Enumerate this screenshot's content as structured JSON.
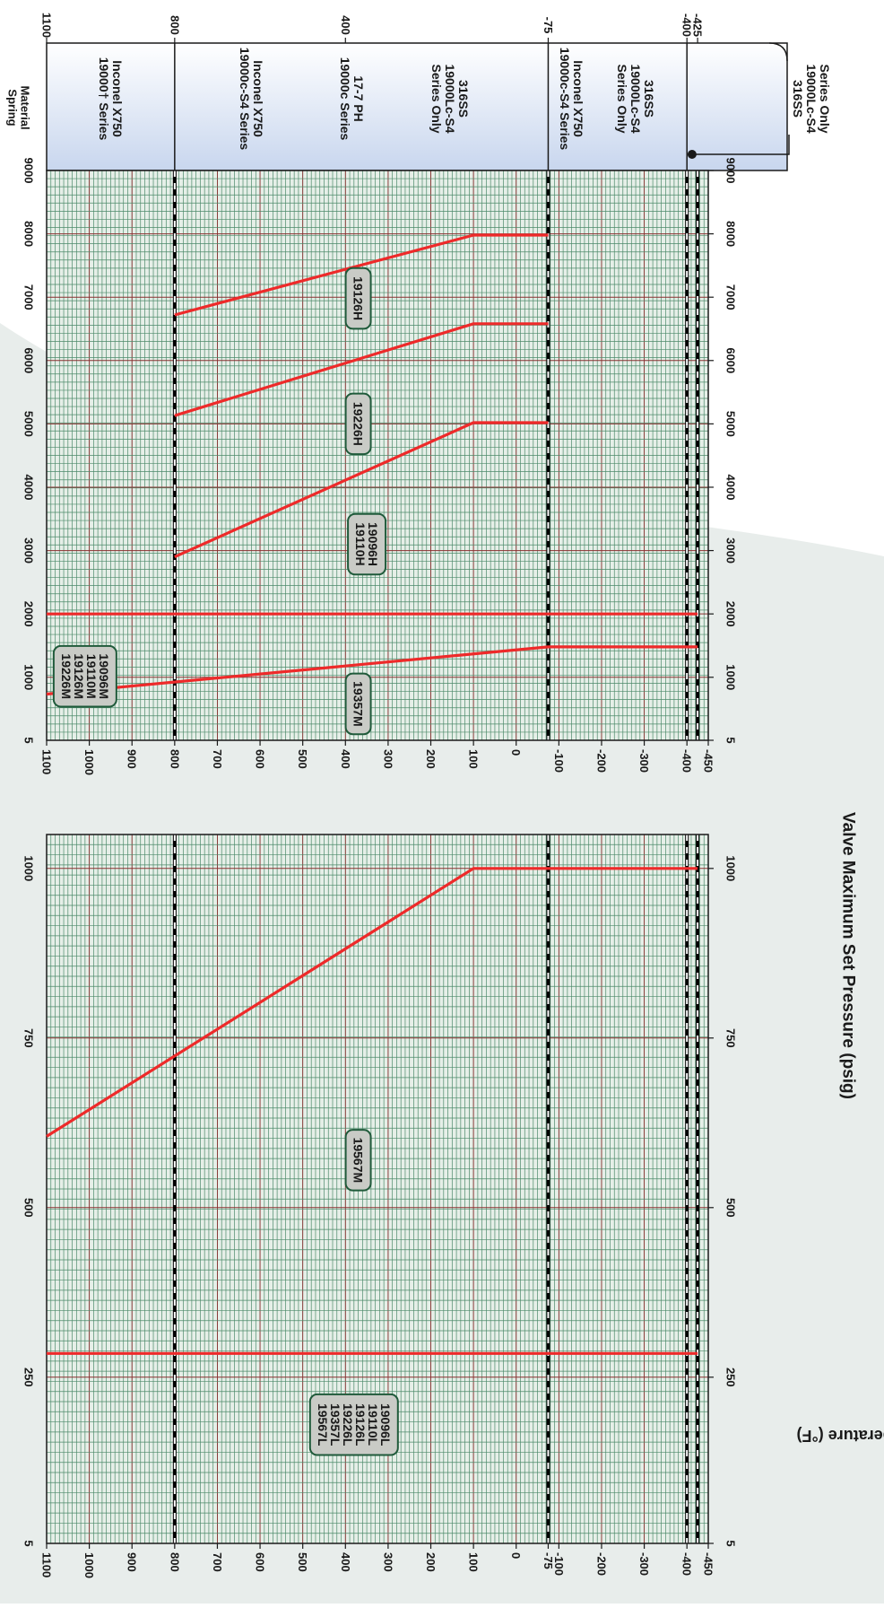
{
  "colors": {
    "grid_minor": "#4c8a6a",
    "grid_major": "#8a3030",
    "curve": "#ee2a2a",
    "panel_fill": "#e6efe8",
    "label_box_fill": "#c9cbc6",
    "label_box_stroke": "#1f5a3a",
    "header_fill_top": "#ffffff",
    "header_fill_bottom": "#c8d6ee",
    "background_swoosh": "#e8edeb"
  },
  "chart_data": {
    "type": "line",
    "orientation": "rotated-90-clockwise",
    "y_label": "Temperature (°F)",
    "x_label": "Valve Maximum Set Pressure (psig)",
    "temperature_limits": [
      800,
      -75,
      -400,
      -425
    ],
    "spring_material": {
      "title": "Spring Material",
      "top_ticks": [
        "1100",
        "800",
        "400",
        "-75",
        "-400",
        "-425"
      ],
      "bands": [
        {
          "tmax": 1100,
          "tmin": 800,
          "lines": [
            "Inconel X750",
            "19000† Series"
          ]
        },
        {
          "tmax": 800,
          "tmin": -75,
          "lines": [
            "Inconel X750",
            "19000c-S4 Series"
          ]
        },
        {
          "tmax": 800,
          "tmin": -75,
          "lines": [
            "17-7 PH",
            "19000c Series"
          ]
        },
        {
          "tmax": 800,
          "tmin": -75,
          "lines": [
            "316SS",
            "19000Lc-S4",
            "Series Only"
          ]
        },
        {
          "tmax": -75,
          "tmin": -400,
          "lines": [
            "Inconel X750",
            "19000c-S4 Series"
          ]
        },
        {
          "tmax": -75,
          "tmin": -400,
          "lines": [
            "316SS",
            "19000Lc-S4",
            "Series Only"
          ]
        },
        {
          "tmax": -400,
          "tmin": -450,
          "lines": [
            "316SS",
            "19000Lc-S4",
            "Series Only"
          ]
        }
      ]
    },
    "panels": [
      {
        "id": "panel-left",
        "x_ticks": [
          5,
          250,
          500,
          750,
          1000
        ],
        "x_range": [
          5,
          1050
        ],
        "y_ticks": [
          "1100",
          "1000",
          "900",
          "800",
          "700",
          "600",
          "500",
          "400",
          "300",
          "200",
          "100",
          "0",
          "-75",
          "-100",
          "-200",
          "-300",
          "-400",
          "-450"
        ],
        "y_range": [
          -450,
          1100
        ],
        "series": [
          {
            "label_lines": [
              "19096L",
              "19110L",
              "19126L",
              "19226L",
              "19357L",
              "19567L"
            ],
            "label_at": [
              380,
              180
            ],
            "points": [
              [
                285,
                1100
              ],
              [
                285,
                -425
              ]
            ]
          },
          {
            "label_lines": [
              "19567M"
            ],
            "label_at": [
              370,
              570
            ],
            "points": [
              [
                605,
                1100
              ],
              [
                1000,
                100
              ],
              [
                1000,
                -425
              ]
            ]
          }
        ]
      },
      {
        "id": "panel-right",
        "x_ticks": [
          5,
          1000,
          2000,
          3000,
          4000,
          5000,
          6000,
          7000,
          8000,
          9000
        ],
        "x_range": [
          5,
          9000
        ],
        "y_ticks": [
          "1100",
          "1000",
          "900",
          "800",
          "700",
          "600",
          "500",
          "400",
          "300",
          "200",
          "100",
          "0",
          "-100",
          "-200",
          "-300",
          "-400",
          "-450"
        ],
        "y_range": [
          -450,
          1100
        ],
        "series": [
          {
            "label_lines": [
              "19357M"
            ],
            "label_at": [
              370,
              580
            ],
            "points": [
              [
                735,
                1100
              ],
              [
                1480,
                -75
              ],
              [
                1480,
                -425
              ]
            ]
          },
          {
            "label_lines": [
              "19096M",
              "19110M",
              "19126M",
              "19226M"
            ],
            "label_at": [
              1010,
              1015
            ],
            "points": [
              [
                2000,
                1100
              ],
              [
                2000,
                -425
              ]
            ]
          },
          {
            "label_lines": [
              "19096H",
              "19110H"
            ],
            "label_at": [
              350,
              3100
            ],
            "points": [
              [
                2900,
                800
              ],
              [
                5020,
                100
              ],
              [
                5020,
                -75
              ]
            ]
          },
          {
            "label_lines": [
              "19226H"
            ],
            "label_at": [
              370,
              5000
            ],
            "points": [
              [
                5130,
                800
              ],
              [
                6580,
                100
              ],
              [
                6580,
                -75
              ]
            ]
          },
          {
            "label_lines": [
              "19126H"
            ],
            "label_at": [
              370,
              6980
            ],
            "points": [
              [
                6720,
                800
              ],
              [
                7980,
                100
              ],
              [
                7980,
                -75
              ]
            ]
          }
        ]
      }
    ]
  }
}
